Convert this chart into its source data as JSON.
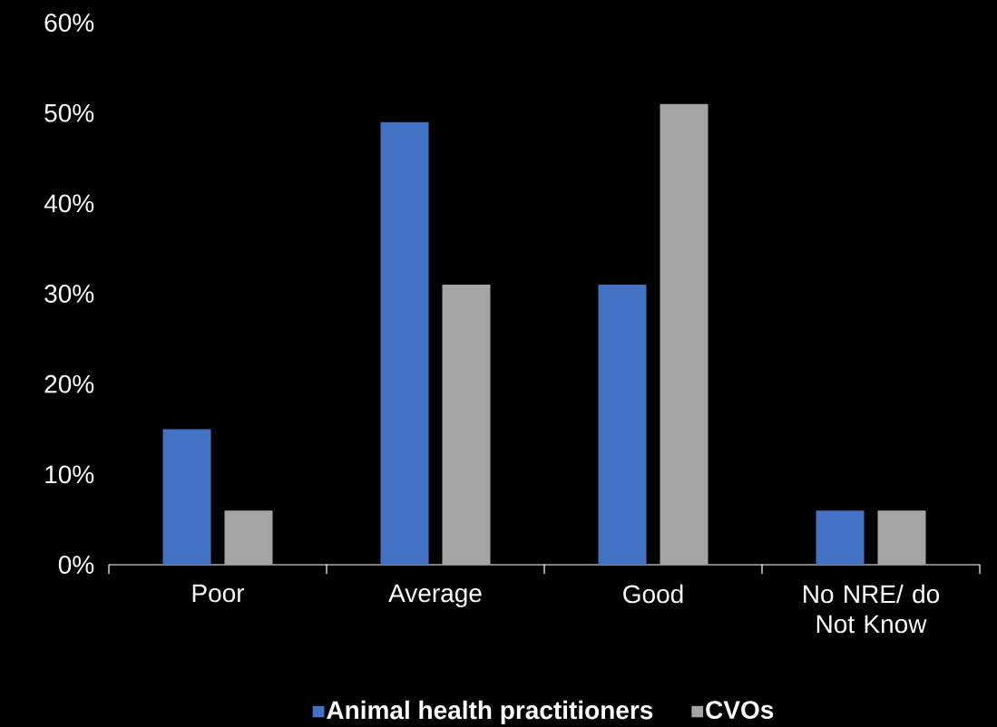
{
  "chart_data": {
    "type": "bar",
    "categories": [
      "Poor",
      "Average",
      "Good",
      "No NRE/ do Not Know"
    ],
    "series": [
      {
        "name": "Animal health practitioners",
        "color": "#4472c4",
        "values": [
          15,
          49,
          31,
          6
        ]
      },
      {
        "name": "CVOs",
        "color": "#a5a5a5",
        "values": [
          6,
          31,
          51,
          6
        ]
      }
    ],
    "ylim": [
      0,
      60
    ],
    "yticks": [
      {
        "value": 0,
        "label": "0%"
      },
      {
        "value": 10,
        "label": "10%"
      },
      {
        "value": 20,
        "label": "20%"
      },
      {
        "value": 30,
        "label": "30%"
      },
      {
        "value": 40,
        "label": "40%"
      },
      {
        "value": 50,
        "label": "50%"
      },
      {
        "value": 60,
        "label": "60%"
      }
    ],
    "legend": "bottom"
  }
}
